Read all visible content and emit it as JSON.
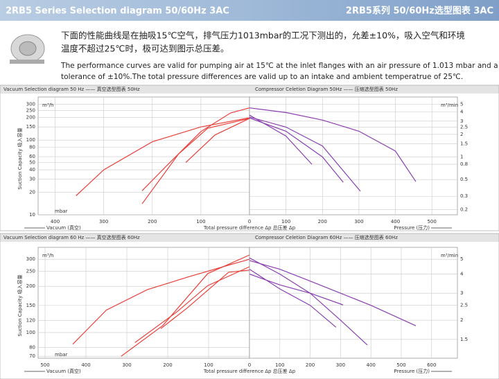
{
  "header": {
    "title_left": "2RB5  Series Selection diagram   50/60Hz  3AC",
    "title_right": "2RB5系列 50/60Hz选型图表 3AC"
  },
  "notes": {
    "zh": [
      "下面的性能曲线是在抽吸15℃空气，排气压力1013mbar的工况下测出的，允差±10%，吸入空气和环境",
      "温度不超过25℃时，极可达到图示总压差。"
    ],
    "en": [
      "The performance curves are valid for pumping air at 15℃ at the inlet flanges with an air pressure of  1.013 mbar and a",
      "tolerance of ±10%.The total pressure differences are valid up to an intake and ambient temperatrue of 25℃."
    ]
  },
  "chart_data": [
    {
      "type": "line",
      "title": "Vacuum Selection diagram 50 Hz —— 真空选型图表 50Hz",
      "xlabel": "Vacuum (真空)",
      "xunit": "mbar",
      "ylabel": "Suction Capacity 吸入容量",
      "yunit": "m³/h",
      "annotation": "Total pressure difference Δp  总压差 Δp",
      "xlim": [
        -435,
        0
      ],
      "xticks": [
        {
          "value": -400,
          "label": "400"
        },
        {
          "value": -300,
          "label": "300"
        },
        {
          "value": -200,
          "label": "200"
        },
        {
          "value": -100,
          "label": "100"
        },
        0
      ],
      "ylim": [
        10,
        318
      ],
      "yticks": [
        10,
        20,
        30,
        40,
        50,
        60,
        80,
        100,
        150,
        200,
        250,
        300
      ],
      "log_y": true,
      "grid": true,
      "series": [
        {
          "color": "#e8403a",
          "x": [
            -357,
            -300,
            -200,
            -100,
            0
          ],
          "values": [
            18,
            40,
            95,
            150,
            199
          ]
        },
        {
          "color": "#e8403a",
          "x": [
            -221,
            -171,
            -100,
            -39,
            0
          ],
          "values": [
            21,
            45,
            130,
            231,
            270
          ]
        },
        {
          "color": "#e8403a",
          "x": [
            -221,
            -146,
            -86,
            0
          ],
          "values": [
            14,
            65,
            144,
            195
          ]
        },
        {
          "color": "#e8403a",
          "x": [
            -131,
            -71,
            0
          ],
          "values": [
            50,
            117,
            195
          ]
        }
      ]
    },
    {
      "type": "line",
      "title": "Compressor Celetion Diagram 50Hz —— 压缩选型图表 50Hz",
      "xlabel": "Pressure (压力)",
      "yunit": "m³/min",
      "xlim": [
        0,
        570
      ],
      "xticks": [
        100,
        200,
        300,
        400,
        500
      ],
      "ylim": [
        0.17,
        5.3
      ],
      "yticks": [
        0.2,
        0.3,
        0.5,
        0.8,
        1,
        1.5,
        2,
        2.5,
        3,
        4,
        5
      ],
      "log_y": true,
      "grid": true,
      "series": [
        {
          "color": "#8a3fb0",
          "x": [
            0,
            100,
            200,
            300,
            400,
            456
          ],
          "values": [
            4.5,
            3.9,
            3.1,
            2.2,
            1.2,
            0.47
          ]
        },
        {
          "color": "#8a3fb0",
          "x": [
            0,
            100,
            200,
            304
          ],
          "values": [
            3.4,
            2.5,
            1.4,
            0.35
          ]
        },
        {
          "color": "#8a3fb0",
          "x": [
            0,
            100,
            200,
            257
          ],
          "values": [
            3.3,
            2.2,
            1,
            0.46
          ]
        },
        {
          "color": "#8a3fb0",
          "x": [
            0,
            100,
            171
          ],
          "values": [
            3.6,
            1.9,
            0.8
          ]
        }
      ]
    },
    {
      "type": "line",
      "title": "Vacuum Selection diagram 60 Hz —— 真空选型图表 60Hz",
      "xlabel": "Vacuum (真空)",
      "xunit": "mbar",
      "ylabel": "Suction Capacity 吸入容量",
      "yunit": "m³/h",
      "annotation": "Total pressure difference Δp  总压差 Δp",
      "xlim": [
        -517,
        0
      ],
      "xticks": [
        {
          "value": -500,
          "label": "500"
        },
        {
          "value": -400,
          "label": "400"
        },
        {
          "value": -300,
          "label": "300"
        },
        {
          "value": -200,
          "label": "200"
        },
        {
          "value": -100,
          "label": "100"
        },
        0
      ],
      "ylim": [
        68,
        330
      ],
      "yticks": [
        70,
        80,
        100,
        120,
        150,
        200,
        250,
        300
      ],
      "log_y": true,
      "grid": true,
      "series": [
        {
          "color": "#e8403a",
          "x": [
            -432,
            -350,
            -250,
            -150,
            -50,
            0
          ],
          "values": [
            84,
            140,
            190,
            230,
            275,
            300
          ]
        },
        {
          "color": "#e8403a",
          "x": [
            -314,
            -212,
            -102,
            0
          ],
          "values": [
            70,
            111,
            242,
            320
          ]
        },
        {
          "color": "#e8403a",
          "x": [
            -280,
            -178,
            -102,
            0
          ],
          "values": [
            86,
            136,
            202,
            268
          ]
        },
        {
          "color": "#e8403a",
          "x": [
            -217,
            -153,
            -51,
            0
          ],
          "values": [
            106,
            144,
            247,
            255
          ]
        }
      ]
    },
    {
      "type": "line",
      "title": "Compressor Celetion Diagram 60Hz —— 压缩选型图表 60Hz",
      "xlabel": "Pressure (压力)",
      "yunit": "m³/min",
      "xlim": [
        0,
        685
      ],
      "xticks": [
        100,
        200,
        300,
        400,
        500,
        600
      ],
      "ylim": [
        1.13,
        5.5
      ],
      "yticks": [
        1.5,
        2,
        2.5,
        3,
        4,
        5
      ],
      "log_y": true,
      "grid": true,
      "series": [
        {
          "color": "#8a3fb0",
          "x": [
            0,
            100,
            200,
            300,
            400,
            548
          ],
          "values": [
            4.9,
            4.3,
            3.6,
            3,
            2.5,
            1.84
          ]
        },
        {
          "color": "#8a3fb0",
          "x": [
            0,
            100,
            200,
            300,
            388
          ],
          "values": [
            5.1,
            4,
            3,
            2,
            1.38
          ]
        },
        {
          "color": "#8a3fb0",
          "x": [
            0,
            100,
            200,
            308
          ],
          "values": [
            4,
            3.4,
            3,
            2.52
          ]
        },
        {
          "color": "#8a3fb0",
          "x": [
            0,
            100,
            200,
            285
          ],
          "values": [
            4.3,
            3.2,
            2.5,
            1.8
          ]
        }
      ]
    }
  ]
}
